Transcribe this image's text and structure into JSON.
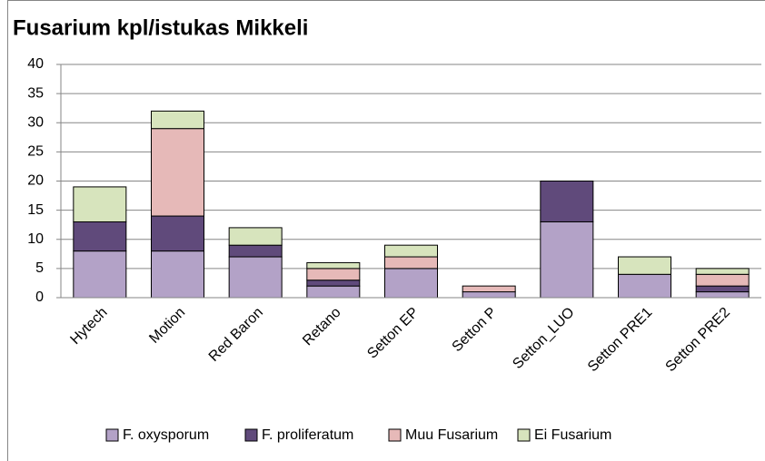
{
  "chart_data": {
    "type": "stacked_bar",
    "title": "Fusarium kpl/istukas Mikkeli",
    "categories": [
      "Hytech",
      "Motion",
      "Red Baron",
      "Retano",
      "Setton EP",
      "Setton P",
      "Setton_LUO",
      "Setton PRE1",
      "Setton PRE2"
    ],
    "series": [
      {
        "name": "F. oxysporum",
        "color": "#b3a2c7",
        "values": [
          8,
          8,
          7,
          2,
          5,
          1,
          13,
          4,
          1
        ]
      },
      {
        "name": "F. proliferatum",
        "color": "#604a7b",
        "values": [
          5,
          6,
          2,
          1,
          0,
          0,
          7,
          0,
          1
        ]
      },
      {
        "name": "Muu Fusarium",
        "color": "#e6b9b8",
        "values": [
          0,
          15,
          0,
          2,
          2,
          1,
          0,
          0,
          2
        ]
      },
      {
        "name": "Ei Fusarium",
        "color": "#d7e4bd",
        "values": [
          6,
          3,
          3,
          1,
          2,
          0,
          0,
          3,
          1
        ]
      }
    ],
    "ylim": [
      0,
      40
    ],
    "yticks": [
      0,
      5,
      10,
      15,
      20,
      25,
      30,
      35,
      40
    ],
    "grid": true,
    "legend": "bottom"
  }
}
